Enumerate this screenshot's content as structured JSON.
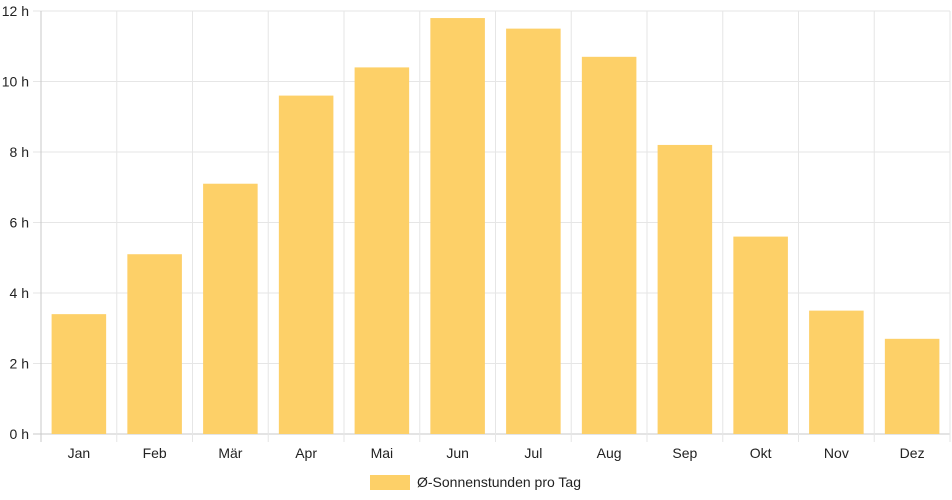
{
  "chart_data": {
    "type": "bar",
    "categories": [
      "Jan",
      "Feb",
      "Mär",
      "Apr",
      "Mai",
      "Jun",
      "Jul",
      "Aug",
      "Sep",
      "Okt",
      "Nov",
      "Dez"
    ],
    "series": [
      {
        "name": "Ø-Sonnenstunden pro Tag",
        "values": [
          3.4,
          5.1,
          7.1,
          9.6,
          10.4,
          11.8,
          11.5,
          10.7,
          8.2,
          5.6,
          3.5,
          2.7
        ]
      }
    ],
    "y_ticks": [
      "0 h",
      "2 h",
      "4 h",
      "6 h",
      "8 h",
      "10 h",
      "12 h"
    ],
    "ylim": [
      0,
      12
    ],
    "y_step": 2,
    "grid": true,
    "legend_position": "bottom",
    "colors": {
      "bar": "#fdd068",
      "grid": "#e6e6e6",
      "axis": "#c8c8c8"
    }
  }
}
